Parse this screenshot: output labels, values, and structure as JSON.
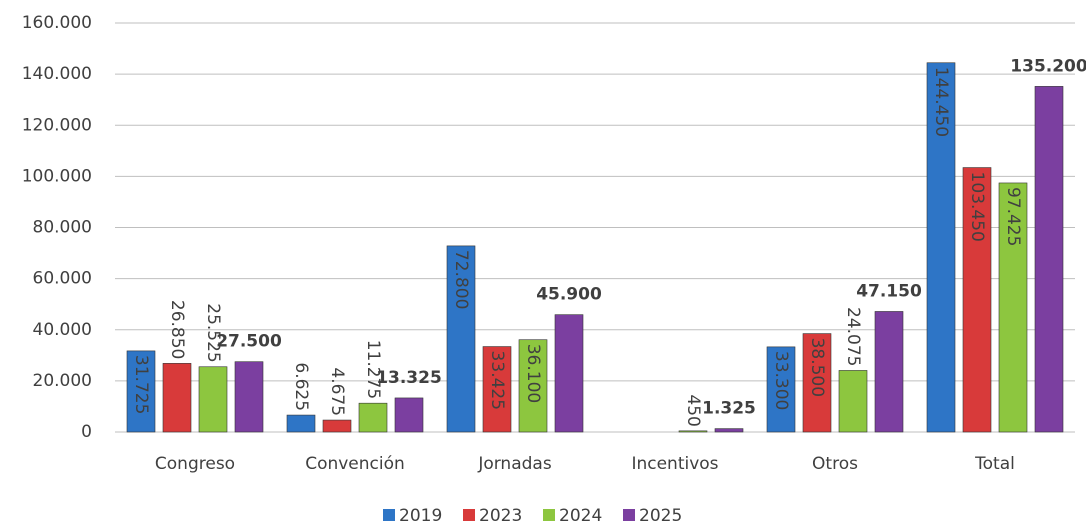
{
  "chart_data": {
    "type": "bar",
    "categories": [
      "Congreso",
      "Convención",
      "Jornadas",
      "Incentivos",
      "Otros",
      "Total"
    ],
    "series": [
      {
        "name": "2019",
        "color": "#2e75c6",
        "values": [
          31725,
          6625,
          72800,
          null,
          33300,
          144450
        ],
        "value_labels": [
          "31.725",
          "6.625",
          "72.800",
          null,
          "33.300",
          "144.450"
        ]
      },
      {
        "name": "2023",
        "color": "#d83a3a",
        "values": [
          26850,
          4675,
          33425,
          null,
          38500,
          103450
        ],
        "value_labels": [
          "26.850",
          "4.675",
          "33.425",
          null,
          "38.500",
          "103.450"
        ]
      },
      {
        "name": "2024",
        "color": "#8dc63f",
        "values": [
          25525,
          11275,
          36100,
          450,
          24075,
          97425
        ],
        "value_labels": [
          "25.525",
          "11.275",
          "36.100",
          "450",
          "24.075",
          "97.425"
        ]
      },
      {
        "name": "2025",
        "color": "#7b3fa0",
        "values": [
          27500,
          13325,
          45900,
          1325,
          47150,
          135200
        ],
        "value_labels": [
          "27.500",
          "13.325",
          "45.900",
          "1.325",
          "47.150",
          "135.200"
        ]
      }
    ],
    "ylim": [
      0,
      160000
    ],
    "yticks": [
      0,
      {
        "value": 20000,
        "label": "20.000"
      },
      {
        "value": 40000,
        "label": "40.000"
      },
      {
        "value": 60000,
        "label": "60.000"
      },
      {
        "value": 80000,
        "label": "80.000"
      },
      {
        "value": 100000,
        "label": "100.000"
      },
      {
        "value": 120000,
        "label": "120.000"
      },
      {
        "value": 140000,
        "label": "140.000"
      },
      {
        "value": 160000,
        "label": "160.000"
      }
    ],
    "grid": true
  }
}
